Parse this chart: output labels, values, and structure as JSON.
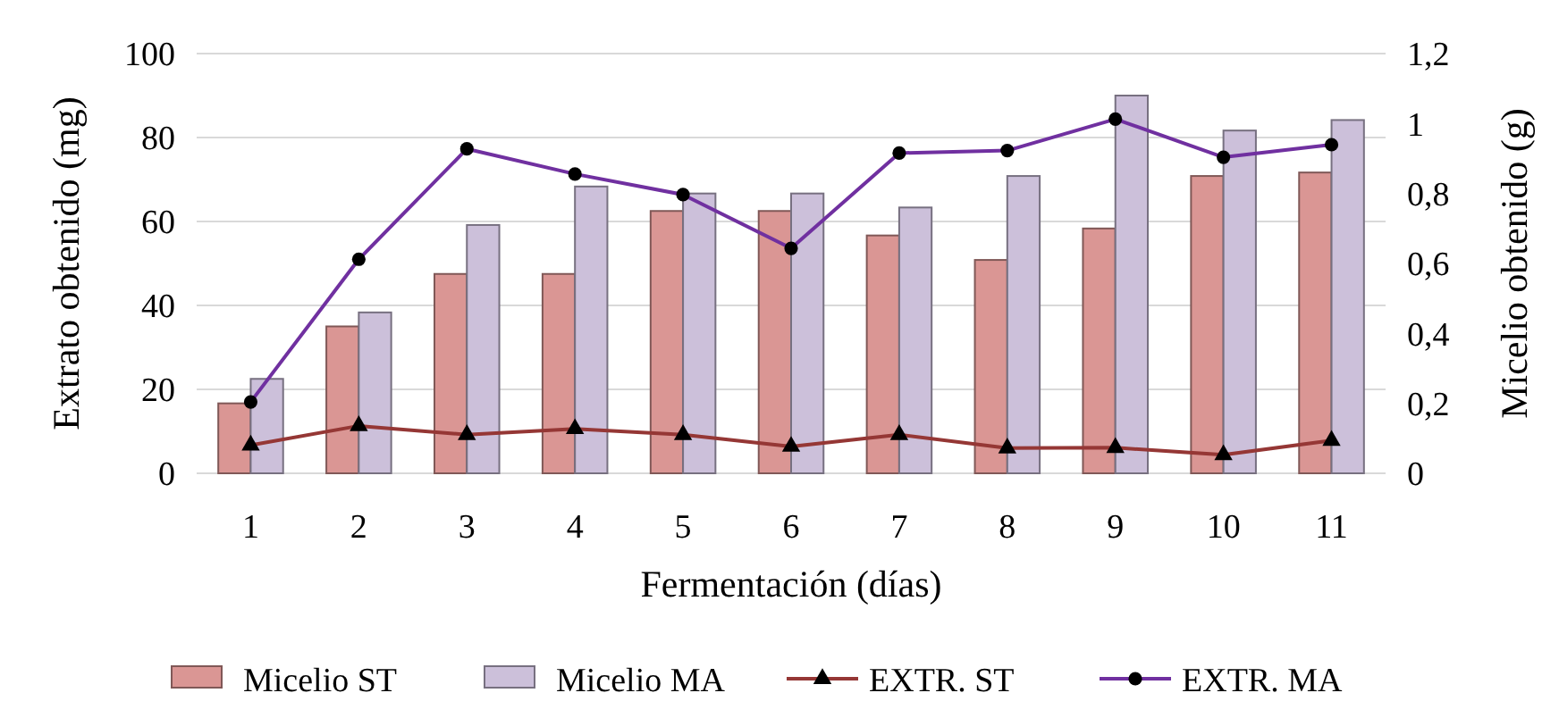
{
  "chart_data": {
    "type": "bar",
    "xlabel": "Fermentación (días)",
    "ylabel": "Extrato obtenido (mg)",
    "y2label": "Micelio obtenido (g)",
    "categories": [
      "1",
      "2",
      "3",
      "4",
      "5",
      "6",
      "7",
      "8",
      "9",
      "10",
      "11"
    ],
    "series": [
      {
        "name": "Micelio ST",
        "axis": "y2",
        "color": "#da9694",
        "values": [
          0.2,
          0.42,
          0.57,
          0.57,
          0.75,
          0.75,
          0.68,
          0.61,
          0.7,
          0.85,
          0.86
        ]
      },
      {
        "name": "Micelio MA",
        "axis": "y2",
        "color": "#ccc0da",
        "values": [
          0.27,
          0.46,
          0.71,
          0.82,
          0.8,
          0.8,
          0.76,
          0.85,
          1.08,
          0.98,
          1.01
        ]
      },
      {
        "name": "EXTR. ST",
        "type": "line",
        "color": "#953735",
        "marker": "triangle",
        "values": [
          6.7,
          11.3,
          9.2,
          10.6,
          9.2,
          6.4,
          9.2,
          6,
          6.1,
          4.4,
          7.8
        ]
      },
      {
        "name": "EXTR. MA",
        "type": "line",
        "color": "#7030a0",
        "marker": "circle",
        "values": [
          17,
          51,
          77.3,
          71.3,
          66.4,
          53.6,
          76.3,
          76.9,
          84.4,
          75.3,
          78.3
        ]
      }
    ],
    "ylim": [
      0,
      100
    ],
    "yticks": [
      0,
      20,
      40,
      60,
      80,
      100
    ],
    "y2lim": [
      0,
      1.2
    ],
    "y2ticks": [
      0,
      {
        "value": 0.2,
        "label": "0,2"
      },
      {
        "value": 0.4,
        "label": "0,4"
      },
      {
        "value": 0.6,
        "label": "0,6"
      },
      {
        "value": 0.8,
        "label": "0,8"
      },
      1,
      {
        "value": 1.2,
        "label": "1,2"
      }
    ],
    "grid": "y",
    "legend": "bottom"
  }
}
